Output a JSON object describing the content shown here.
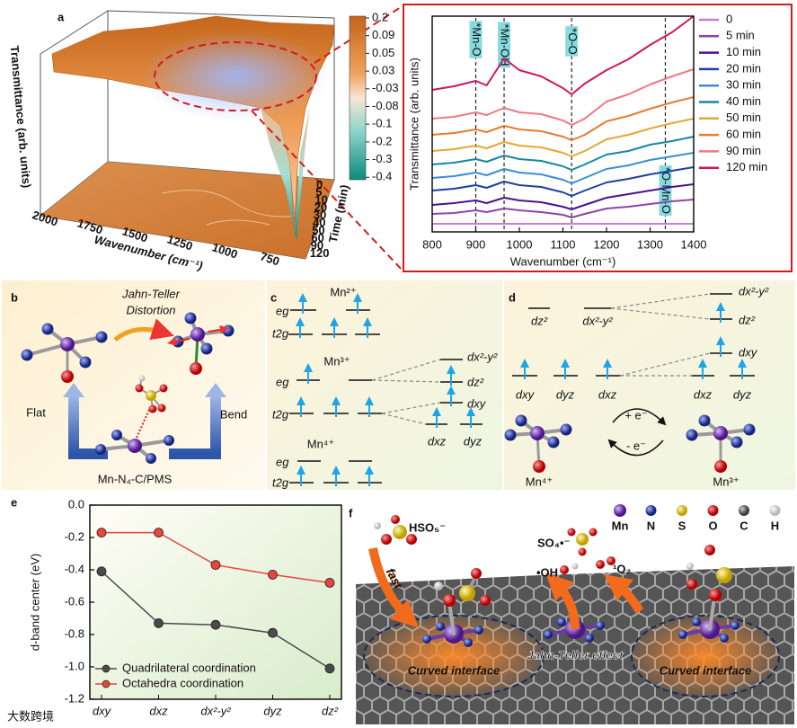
{
  "chart_data": [
    {
      "type": "line",
      "x_label": "Wavenumber (cm⁻¹)",
      "y_label": "Transmittance (arb. units)",
      "x": [
        800,
        850,
        900,
        925,
        965,
        1000,
        1050,
        1100,
        1120,
        1150,
        1200,
        1250,
        1300,
        1350,
        1400
      ],
      "xlim": [
        800,
        1400
      ],
      "xticks": [
        800,
        900,
        1000,
        1100,
        1200,
        1300,
        1400
      ],
      "ylim": [
        0,
        240
      ],
      "series": [
        {
          "name": "0",
          "color": "#c77fd6",
          "values": [
            9,
            9,
            9,
            9,
            9,
            9,
            9,
            9,
            9,
            9,
            9,
            9,
            9,
            9,
            9
          ]
        },
        {
          "name": "5 min",
          "color": "#8e44ad",
          "values": [
            20,
            21,
            24,
            22,
            26,
            24,
            22,
            19,
            16,
            20,
            26,
            28,
            31,
            34,
            36
          ]
        },
        {
          "name": "10 min",
          "color": "#4b1190",
          "values": [
            30,
            32,
            35,
            32,
            38,
            35,
            33,
            28,
            25,
            30,
            38,
            42,
            46,
            50,
            53
          ]
        },
        {
          "name": "20 min",
          "color": "#1f3fa0",
          "values": [
            46,
            48,
            52,
            49,
            56,
            52,
            50,
            44,
            40,
            46,
            55,
            59,
            64,
            68,
            72
          ]
        },
        {
          "name": "30 min",
          "color": "#3a8ed6",
          "values": [
            60,
            62,
            66,
            63,
            70,
            66,
            64,
            58,
            54,
            60,
            70,
            74,
            80,
            84,
            88
          ]
        },
        {
          "name": "40 min",
          "color": "#138a9c",
          "values": [
            75,
            77,
            81,
            78,
            85,
            81,
            79,
            73,
            69,
            75,
            86,
            90,
            97,
            101,
            106
          ]
        },
        {
          "name": "50 min",
          "color": "#e3a832",
          "values": [
            90,
            92,
            96,
            93,
            100,
            96,
            94,
            88,
            84,
            90,
            103,
            108,
            115,
            121,
            126
          ]
        },
        {
          "name": "60 min",
          "color": "#e57c2e",
          "values": [
            108,
            110,
            114,
            111,
            118,
            114,
            112,
            106,
            102,
            108,
            123,
            129,
            137,
            144,
            150
          ]
        },
        {
          "name": "90 min",
          "color": "#f07884",
          "values": [
            126,
            128,
            133,
            130,
            138,
            133,
            131,
            124,
            119,
            126,
            145,
            153,
            164,
            173,
            181
          ]
        },
        {
          "name": "120 min",
          "color": "#d2145e",
          "values": [
            158,
            162,
            168,
            163,
            193,
            180,
            173,
            160,
            153,
            165,
            180,
            192,
            208,
            222,
            240
          ]
        }
      ],
      "annotations": [
        {
          "x": 900,
          "label": "*Mn-O"
        },
        {
          "x": 965,
          "label": "*Mn-OH"
        },
        {
          "x": 1120,
          "label": "*O-O"
        },
        {
          "x": 1335,
          "label": "*O-Mn-O"
        }
      ],
      "legend": "right"
    },
    {
      "type": "line",
      "y_label": "d-band center (eV)",
      "categories": [
        "dxy",
        "dxz",
        "dx²-y²",
        "dyz",
        "dz²"
      ],
      "ylim": [
        -1.2,
        0
      ],
      "yticks": [
        -1.2,
        {
          "value": -1,
          "label": "-1.0"
        },
        -0.8,
        -0.6,
        -0.4,
        -0.2,
        {
          "value": 0,
          "label": "0.0"
        }
      ],
      "series": [
        {
          "name": "Quadrilateral coordination",
          "color": "#4a4a4a",
          "values": [
            -0.41,
            -0.73,
            -0.74,
            -0.79,
            -1.01
          ]
        },
        {
          "name": "Octahedra coordination",
          "color": "#e8453c",
          "values": [
            -0.17,
            -0.17,
            -0.37,
            -0.43,
            -0.48
          ]
        }
      ],
      "legend": "lower left",
      "markers": true
    }
  ],
  "panels": {
    "a": {
      "label": "a",
      "surface": {
        "y_label": "Transmittance (arb. units)",
        "x_label": "Wavenumber (cm⁻¹)",
        "xticks": [
          2000,
          1750,
          1500,
          1250,
          1000,
          750
        ],
        "time_label": "Time (min)",
        "time_ticks": [
          0,
          5,
          10,
          20,
          30,
          40,
          50,
          60,
          90,
          120
        ],
        "colorbar_ticks": [
          0.2,
          0.09,
          0.05,
          0.03,
          -0.03,
          -0.08,
          -0.1,
          -0.2,
          -0.3,
          -0.4
        ]
      }
    },
    "b": {
      "label": "b",
      "title": [
        "Jahn-Teller",
        "Distortion"
      ],
      "left": "Flat",
      "right": "Bend",
      "caption": "Mn-N₄-C/PMS"
    },
    "c": {
      "label": "c",
      "mn2": {
        "ion": "Mn²⁺",
        "eg": "eg",
        "t2g": "t2g"
      },
      "mn3": {
        "ion": "Mn³⁺",
        "eg": "eg",
        "t2g": "t2g",
        "levels": [
          "dx²-y²",
          "dz²",
          "dxy",
          "dxz",
          "dyz"
        ]
      },
      "mn4": {
        "ion": "Mn⁴⁺",
        "eg": "eg",
        "t2g": "t2g"
      }
    },
    "d": {
      "label": "d",
      "left": [
        "dz²",
        "dx²-y²",
        "dxy",
        "dyz",
        "dxz"
      ],
      "right": [
        "dx²-y²",
        "dz²",
        "dxy",
        "dxz",
        "dyz"
      ],
      "reduce": "+ e⁻",
      "oxidize": "- e⁻",
      "left_ion": "Mn⁴⁺",
      "right_ion": "Mn³⁺"
    },
    "e": {
      "label": "e"
    },
    "f": {
      "label": "f",
      "legend": [
        "Mn",
        "N",
        "S",
        "O",
        "C",
        "H"
      ],
      "species": [
        "HSO₅⁻",
        "SO₄•⁻",
        "•OH",
        "¹O₂"
      ],
      "fast": "fast",
      "effect": "Jahn-Teller effect",
      "interface": [
        "Curved interface",
        "Curved interface"
      ]
    }
  },
  "watermark": "大数跨境"
}
